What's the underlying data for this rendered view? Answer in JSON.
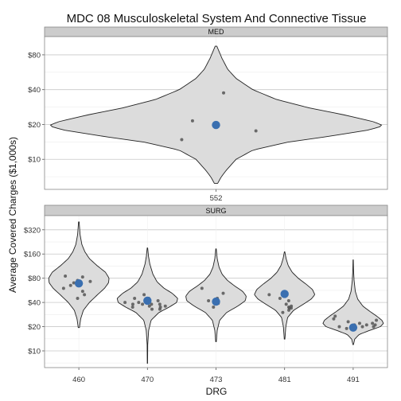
{
  "chart_data": {
    "type": "violin",
    "title": "MDC 08 Musculoskeletal System And Connective Tissue",
    "xlabel": "DRG",
    "ylabel": "Average Covered Charges ($1,000s)",
    "y_scale": "log",
    "grid": true,
    "legend": "none",
    "colors": {
      "violin_fill": "#dcdcdc",
      "point": "#555555",
      "mean_point": "#3a6fb0",
      "grid": "#c8c8c8",
      "strip": "#cccccc"
    },
    "panels": [
      {
        "strip": "MED",
        "ylim": [
          5.5,
          115
        ],
        "ticks": [
          {
            "v": 10,
            "label": "$10"
          },
          {
            "v": 20,
            "label": "$20"
          },
          {
            "v": 40,
            "label": "$40"
          },
          {
            "v": 80,
            "label": "$80"
          }
        ],
        "violin_halfwidth": 210,
        "groups": [
          {
            "drg": "552",
            "mean": 19.8,
            "range": [
              6.2,
              95
            ],
            "density": [
              [
                6.2,
                0.01
              ],
              [
                7,
                0.03
              ],
              [
                8,
                0.06
              ],
              [
                10,
                0.12
              ],
              [
                12,
                0.22
              ],
              [
                14,
                0.42
              ],
              [
                16,
                0.7
              ],
              [
                18,
                0.92
              ],
              [
                19.5,
                1.0
              ],
              [
                21,
                0.95
              ],
              [
                24,
                0.78
              ],
              [
                28,
                0.55
              ],
              [
                33,
                0.36
              ],
              [
                40,
                0.22
              ],
              [
                50,
                0.12
              ],
              [
                60,
                0.07
              ],
              [
                75,
                0.035
              ],
              [
                95,
                0.005
              ]
            ],
            "points": [
              [
                14.8,
                -0.45
              ],
              [
                21.5,
                -0.18
              ],
              [
                37.5,
                0.2
              ],
              [
                17.6,
                0.32
              ]
            ]
          }
        ]
      },
      {
        "strip": "SURG",
        "ylim": [
          6.2,
          480
        ],
        "ticks": [
          {
            "v": 10,
            "label": "$10"
          },
          {
            "v": 20,
            "label": "$20"
          },
          {
            "v": 40,
            "label": "$40"
          },
          {
            "v": 80,
            "label": "$80"
          },
          {
            "v": 160,
            "label": "$160"
          },
          {
            "v": 320,
            "label": "$320"
          }
        ],
        "violin_halfwidth": 38,
        "groups": [
          {
            "drg": "460",
            "mean": 69,
            "range": [
              19.5,
              400
            ],
            "density": [
              [
                19.5,
                0.02
              ],
              [
                25,
                0.06
              ],
              [
                32,
                0.15
              ],
              [
                40,
                0.35
              ],
              [
                50,
                0.62
              ],
              [
                60,
                0.85
              ],
              [
                70,
                0.98
              ],
              [
                80,
                1.0
              ],
              [
                95,
                0.88
              ],
              [
                115,
                0.6
              ],
              [
                140,
                0.35
              ],
              [
                170,
                0.2
              ],
              [
                210,
                0.1
              ],
              [
                280,
                0.04
              ],
              [
                400,
                0.01
              ]
            ],
            "points": [
              [
                60,
                -0.7
              ],
              [
                85,
                -0.55
              ],
              [
                65,
                -0.35
              ],
              [
                70,
                -0.2
              ],
              [
                75,
                -0.05
              ],
              [
                83,
                0.15
              ],
              [
                55,
                0.2
              ],
              [
                73,
                0.45
              ],
              [
                45,
                -0.1
              ],
              [
                50,
                0.35
              ]
            ]
          },
          {
            "drg": "470",
            "mean": 42,
            "range": [
              7,
              190
            ],
            "density": [
              [
                7,
                0.005
              ],
              [
                12,
                0.01
              ],
              [
                18,
                0.04
              ],
              [
                24,
                0.12
              ],
              [
                30,
                0.38
              ],
              [
                35,
                0.72
              ],
              [
                40,
                0.97
              ],
              [
                45,
                1.0
              ],
              [
                52,
                0.82
              ],
              [
                60,
                0.55
              ],
              [
                72,
                0.32
              ],
              [
                90,
                0.18
              ],
              [
                120,
                0.08
              ],
              [
                150,
                0.035
              ],
              [
                190,
                0.008
              ]
            ],
            "points": [
              [
                40,
                -0.9
              ],
              [
                35,
                -0.8
              ],
              [
                38,
                -0.65
              ],
              [
                45,
                -0.5
              ],
              [
                40,
                -0.35
              ],
              [
                38,
                -0.22
              ],
              [
                40,
                -0.05
              ],
              [
                45,
                0.05
              ],
              [
                38,
                0.18
              ],
              [
                33,
                0.3
              ],
              [
                42,
                0.42
              ],
              [
                38,
                0.55
              ],
              [
                35,
                0.7
              ],
              [
                33,
                0.82
              ],
              [
                36,
                0.9
              ],
              [
                50,
                -0.15
              ],
              [
                36,
                0.1
              ]
            ]
          },
          {
            "drg": "473",
            "mean": 41,
            "range": [
              13,
              185
            ],
            "density": [
              [
                13,
                0.01
              ],
              [
                18,
                0.04
              ],
              [
                24,
                0.12
              ],
              [
                30,
                0.35
              ],
              [
                36,
                0.72
              ],
              [
                42,
                0.97
              ],
              [
                48,
                1.0
              ],
              [
                55,
                0.88
              ],
              [
                64,
                0.62
              ],
              [
                75,
                0.38
              ],
              [
                90,
                0.2
              ],
              [
                110,
                0.1
              ],
              [
                140,
                0.04
              ],
              [
                185,
                0.008
              ]
            ],
            "points": [
              [
                60,
                -0.75
              ],
              [
                42,
                -0.3
              ],
              [
                35,
                -0.15
              ],
              [
                45,
                0.05
              ],
              [
                52,
                0.3
              ],
              [
                39,
                0.1
              ]
            ]
          },
          {
            "drg": "481",
            "mean": 51,
            "range": [
              14,
              170
            ],
            "density": [
              [
                14,
                0.01
              ],
              [
                20,
                0.04
              ],
              [
                26,
                0.1
              ],
              [
                32,
                0.3
              ],
              [
                38,
                0.62
              ],
              [
                44,
                0.88
              ],
              [
                50,
                1.0
              ],
              [
                58,
                0.92
              ],
              [
                68,
                0.7
              ],
              [
                80,
                0.45
              ],
              [
                95,
                0.25
              ],
              [
                115,
                0.12
              ],
              [
                140,
                0.05
              ],
              [
                170,
                0.008
              ]
            ],
            "points": [
              [
                50,
                -0.6
              ],
              [
                45,
                -0.2
              ],
              [
                30,
                -0.3
              ],
              [
                38,
                0.1
              ],
              [
                42,
                0.2
              ],
              [
                35,
                0.35
              ],
              [
                36,
                0.5
              ],
              [
                34,
                0.62
              ],
              [
                34,
                0.45
              ],
              [
                32,
                0.55
              ]
            ]
          },
          {
            "drg": "491",
            "mean": 19.5,
            "range": [
              12,
              135
            ],
            "density": [
              [
                12,
                0.01
              ],
              [
                14,
                0.05
              ],
              [
                16,
                0.2
              ],
              [
                18,
                0.55
              ],
              [
                20,
                0.9
              ],
              [
                22,
                1.0
              ],
              [
                24,
                0.95
              ],
              [
                27,
                0.78
              ],
              [
                31,
                0.55
              ],
              [
                36,
                0.32
              ],
              [
                44,
                0.15
              ],
              [
                55,
                0.07
              ],
              [
                75,
                0.03
              ],
              [
                100,
                0.012
              ],
              [
                135,
                0.005
              ]
            ],
            "points": [
              [
                27,
                -0.9
              ],
              [
                25,
                -0.85
              ],
              [
                20,
                -0.6
              ],
              [
                19,
                -0.35
              ],
              [
                23,
                -0.2
              ],
              [
                21,
                0.05
              ],
              [
                22,
                0.25
              ],
              [
                20,
                0.4
              ],
              [
                21,
                0.55
              ],
              [
                22,
                0.75
              ],
              [
                20,
                0.88
              ],
              [
                21,
                0.9
              ],
              [
                24,
                0.95
              ]
            ]
          }
        ]
      }
    ]
  }
}
